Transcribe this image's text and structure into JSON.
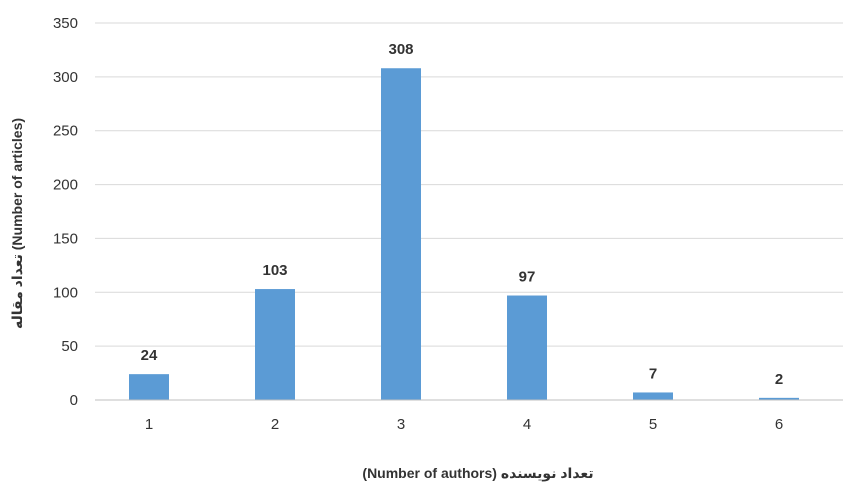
{
  "chart_data": {
    "type": "bar",
    "categories": [
      "1",
      "2",
      "3",
      "4",
      "5",
      "6"
    ],
    "values": [
      24,
      103,
      308,
      97,
      7,
      2
    ],
    "data_labels": [
      "24",
      "103",
      "308",
      "97",
      "7",
      "2"
    ],
    "title": "",
    "xlabel": "(Number of authors) تعداد نویسنده",
    "ylabel": "تعداد مقاله (Number of articles)",
    "ylim": [
      0,
      350
    ],
    "yticks": [
      0,
      50,
      100,
      150,
      200,
      250,
      300,
      350
    ],
    "ytick_labels": [
      "0",
      "50",
      "100",
      "150",
      "200",
      "250",
      "300",
      "350"
    ],
    "grid": true,
    "legend": "none",
    "bar_color": "#5b9bd5"
  }
}
